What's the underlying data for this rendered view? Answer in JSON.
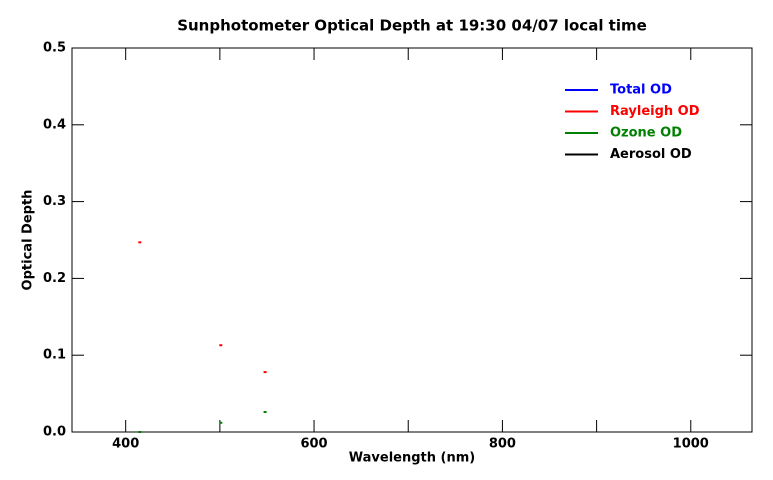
{
  "chart_data": {
    "type": "scatter",
    "title": "Sunphotometer Optical Depth at 19:30  04/07 local time",
    "x_label": "Wavelength (nm)",
    "y_label": "Optical Depth",
    "xlim": [
      343,
      1065
    ],
    "xticks": [
      400,
      600,
      800,
      1000
    ],
    "xminor_ticks": [
      500,
      700,
      900
    ],
    "ylim": [
      0,
      0.5
    ],
    "yticks": [
      {
        "value": 0,
        "label": "0.0"
      },
      {
        "value": 0.1,
        "label": "0.1"
      },
      {
        "value": 0.2,
        "label": "0.2"
      },
      {
        "value": 0.3,
        "label": "0.3"
      },
      {
        "value": 0.4,
        "label": "0.4"
      },
      {
        "value": 0.5,
        "label": "0.5"
      }
    ],
    "series": [
      {
        "name": "Total OD",
        "color": "#0000ff",
        "x": [],
        "values": []
      },
      {
        "name": "Rayleigh OD",
        "color": "#ff0000",
        "x": [
          415,
          501,
          548
        ],
        "values": [
          0.247,
          0.113,
          0.078
        ]
      },
      {
        "name": "Ozone OD",
        "color": "#008000",
        "x": [
          415,
          501,
          548
        ],
        "values": [
          0.0,
          0.012,
          0.026
        ]
      },
      {
        "name": "Aerosol OD",
        "color": "#000000",
        "x": [],
        "values": []
      }
    ]
  }
}
